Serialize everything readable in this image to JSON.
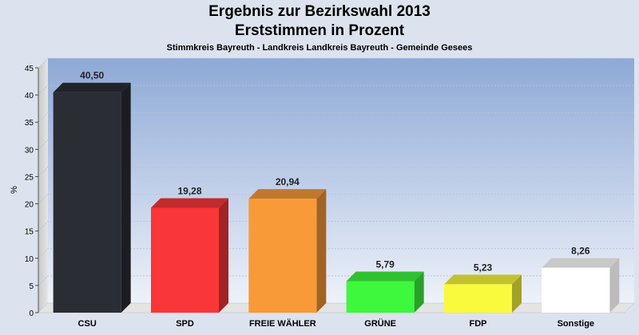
{
  "chart_data": {
    "type": "bar",
    "title": "Ergebnis zur Bezirkswahl 2013",
    "subtitle": "Erststimmen in Prozent",
    "subtitle2": "Stimmkreis Bayreuth - Landkreis Landkreis Bayreuth - Gemeinde Gesees",
    "ylabel": "%",
    "xlabel": "",
    "ylim": [
      0,
      45
    ],
    "yticks": [
      0,
      5,
      10,
      15,
      20,
      25,
      30,
      35,
      40,
      45
    ],
    "grid": true,
    "categories": [
      "CSU",
      "SPD",
      "FREIE WÄHLER",
      "GRÜNE",
      "FDP",
      "Sonstige"
    ],
    "values": [
      40.5,
      19.28,
      20.94,
      5.79,
      5.23,
      8.26
    ],
    "value_labels": [
      "40,50",
      "19,28",
      "20,94",
      "5,79",
      "5,23",
      "8,26"
    ],
    "colors": [
      "#2b2d35",
      "#f93638",
      "#f99a38",
      "#3ef83e",
      "#f9f93e",
      "#ffffff"
    ]
  }
}
